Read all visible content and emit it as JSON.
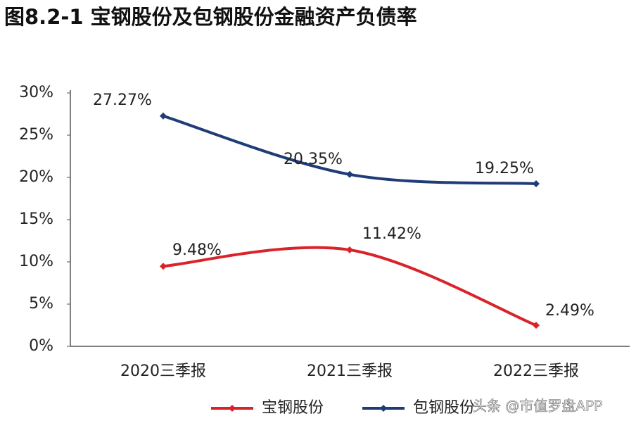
{
  "chart_data": {
    "type": "line",
    "title": "图8.2-1 宝钢股份及包钢股份金融资产负债率",
    "categories": [
      "2020三季报",
      "2021三季报",
      "2022三季报"
    ],
    "series": [
      {
        "name": "宝钢股份",
        "color": "#d9232a",
        "values": [
          9.48,
          11.42,
          2.49
        ],
        "value_labels": [
          "9.48%",
          "11.42%",
          "2.49%"
        ]
      },
      {
        "name": "包钢股份",
        "color": "#1f3c78",
        "values": [
          27.27,
          20.35,
          19.25
        ],
        "value_labels": [
          "27.27%",
          "20.35%",
          "19.25%"
        ]
      }
    ],
    "ylim": [
      0,
      30
    ],
    "yticks": [
      {
        "value": 0,
        "label": "0%"
      },
      {
        "value": 5,
        "label": "5%"
      },
      {
        "value": 10,
        "label": "10%"
      },
      {
        "value": 15,
        "label": "15%"
      },
      {
        "value": 20,
        "label": "20%"
      },
      {
        "value": 25,
        "label": "25%"
      },
      {
        "value": 30,
        "label": "30%"
      }
    ],
    "grid": false,
    "legend": "bottom",
    "watermark": "头条 @市值罗盘APP"
  }
}
